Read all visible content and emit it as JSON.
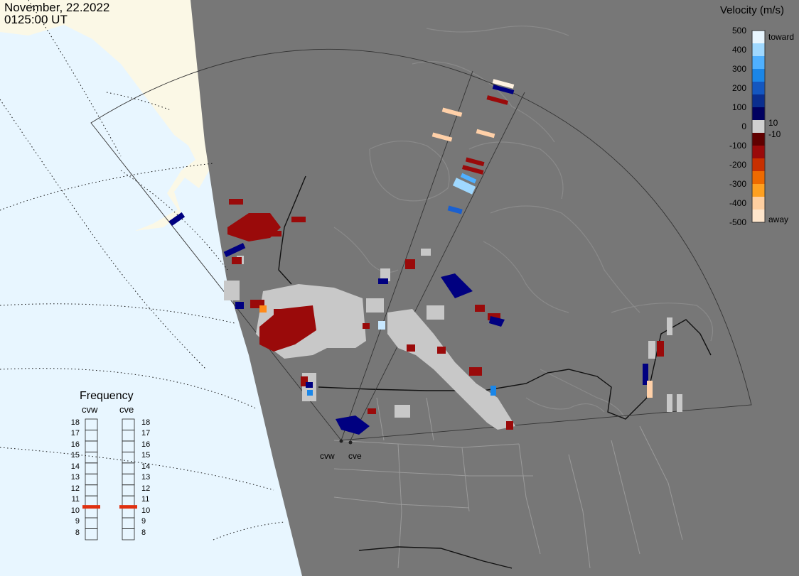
{
  "header": {
    "date": "November, 22.2022",
    "time": "0125:00 UT"
  },
  "velocity_legend": {
    "title": "Velocity (m/s)",
    "ticks": [
      "500",
      "400",
      "300",
      "200",
      "100",
      "0",
      "-100",
      "-200",
      "-300",
      "-400",
      "-500"
    ],
    "side_labels": {
      "toward": "toward",
      "pos_small": "10",
      "neg_small": "-10",
      "away": "away"
    },
    "colors_top_to_bottom": [
      "#e8f6ff",
      "#9fd8ff",
      "#4fb0ff",
      "#1a86e8",
      "#1457c0",
      "#0a2e8f",
      "#000060",
      "#d0d0d0",
      "#600000",
      "#9a0a0a",
      "#c83000",
      "#ee6a00",
      "#ffa020",
      "#ffcfa0",
      "#ffe6cc"
    ]
  },
  "frequency_panel": {
    "title": "Frequency",
    "radars": [
      "cvw",
      "cve"
    ],
    "mhz": [
      "18",
      "17",
      "16",
      "15",
      "14",
      "13",
      "12",
      "11",
      "10",
      "9",
      "8"
    ],
    "selected_mhz": {
      "cvw": 10.5,
      "cve": 10.5
    }
  },
  "radar_sites": {
    "west": "cvw",
    "east": "cve"
  },
  "colors": {
    "land_covered": "#777777",
    "ocean": "#e8f6ff",
    "land_uncovered": "#fbf8e6",
    "ground_scatter": "#c8c8c8",
    "border": "#1a1a1a",
    "frequency_marker": "#e03010"
  }
}
